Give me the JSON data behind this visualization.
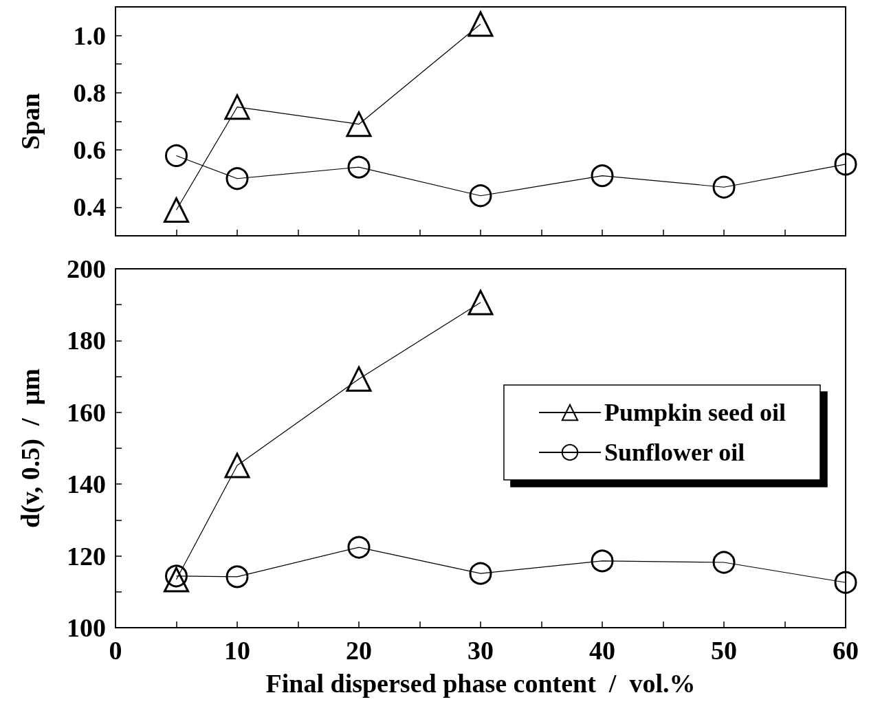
{
  "chart_data": [
    {
      "type": "line",
      "ylabel": "Span",
      "xlim": [
        0,
        60
      ],
      "ylim": [
        0.3,
        1.1
      ],
      "xticks": [
        0,
        {
          "value": 5,
          "label": null
        },
        10,
        {
          "value": 15,
          "label": null
        },
        20,
        {
          "value": 25,
          "label": null
        },
        30,
        {
          "value": 35,
          "label": null
        },
        40,
        {
          "value": 45,
          "label": null
        },
        50,
        {
          "value": 55,
          "label": null
        },
        60
      ],
      "yticks": [
        {
          "value": 0.4,
          "label": "0.4"
        },
        {
          "value": 0.5,
          "label": null
        },
        {
          "value": 0.6,
          "label": "0.6"
        },
        {
          "value": 0.7,
          "label": null
        },
        {
          "value": 0.8,
          "label": "0.8"
        },
        {
          "value": 0.9,
          "label": null
        },
        {
          "value": 1.0,
          "label": "1.0"
        }
      ],
      "tick_labels": "y",
      "legend": false,
      "series": [
        {
          "color": "#000000",
          "marker": "triangle",
          "x": [
            5,
            10,
            20,
            30
          ],
          "values": [
            0.39,
            0.75,
            0.69,
            1.04
          ]
        },
        {
          "color": "#000000",
          "marker": "circle",
          "x": [
            5,
            10,
            20,
            30,
            40,
            50,
            60
          ],
          "values": [
            0.58,
            0.5,
            0.54,
            0.44,
            0.51,
            0.47,
            0.55
          ]
        }
      ]
    },
    {
      "type": "line",
      "xlabel": "Final dispersed phase content  /  vol.%",
      "ylabel": "d(v, 0.5)  /  µm",
      "xlim": [
        0,
        60
      ],
      "ylim": [
        100,
        200
      ],
      "xticks": [
        0,
        {
          "value": 5,
          "label": null
        },
        10,
        {
          "value": 15,
          "label": null
        },
        20,
        {
          "value": 25,
          "label": null
        },
        30,
        {
          "value": 35,
          "label": null
        },
        40,
        {
          "value": 45,
          "label": null
        },
        50,
        {
          "value": 55,
          "label": null
        },
        60
      ],
      "yticks": [
        100,
        {
          "value": 110,
          "label": null
        },
        120,
        {
          "value": 130,
          "label": null
        },
        140,
        {
          "value": 150,
          "label": null
        },
        160,
        {
          "value": 170,
          "label": null
        },
        180,
        {
          "value": 190,
          "label": null
        },
        200
      ],
      "legend": "right",
      "series": [
        {
          "name": "Pumpkin seed oil",
          "color": "#000000",
          "marker": "triangle",
          "x": [
            5,
            10,
            20,
            30
          ],
          "values": [
            113.4,
            145.2,
            169.3,
            190.6
          ]
        },
        {
          "name": "Sunflower oil",
          "color": "#000000",
          "marker": "circle",
          "x": [
            5,
            10,
            20,
            30,
            40,
            50,
            60
          ],
          "values": [
            114.4,
            114.2,
            122.4,
            115.1,
            118.6,
            118.2,
            112.6
          ]
        }
      ]
    }
  ]
}
